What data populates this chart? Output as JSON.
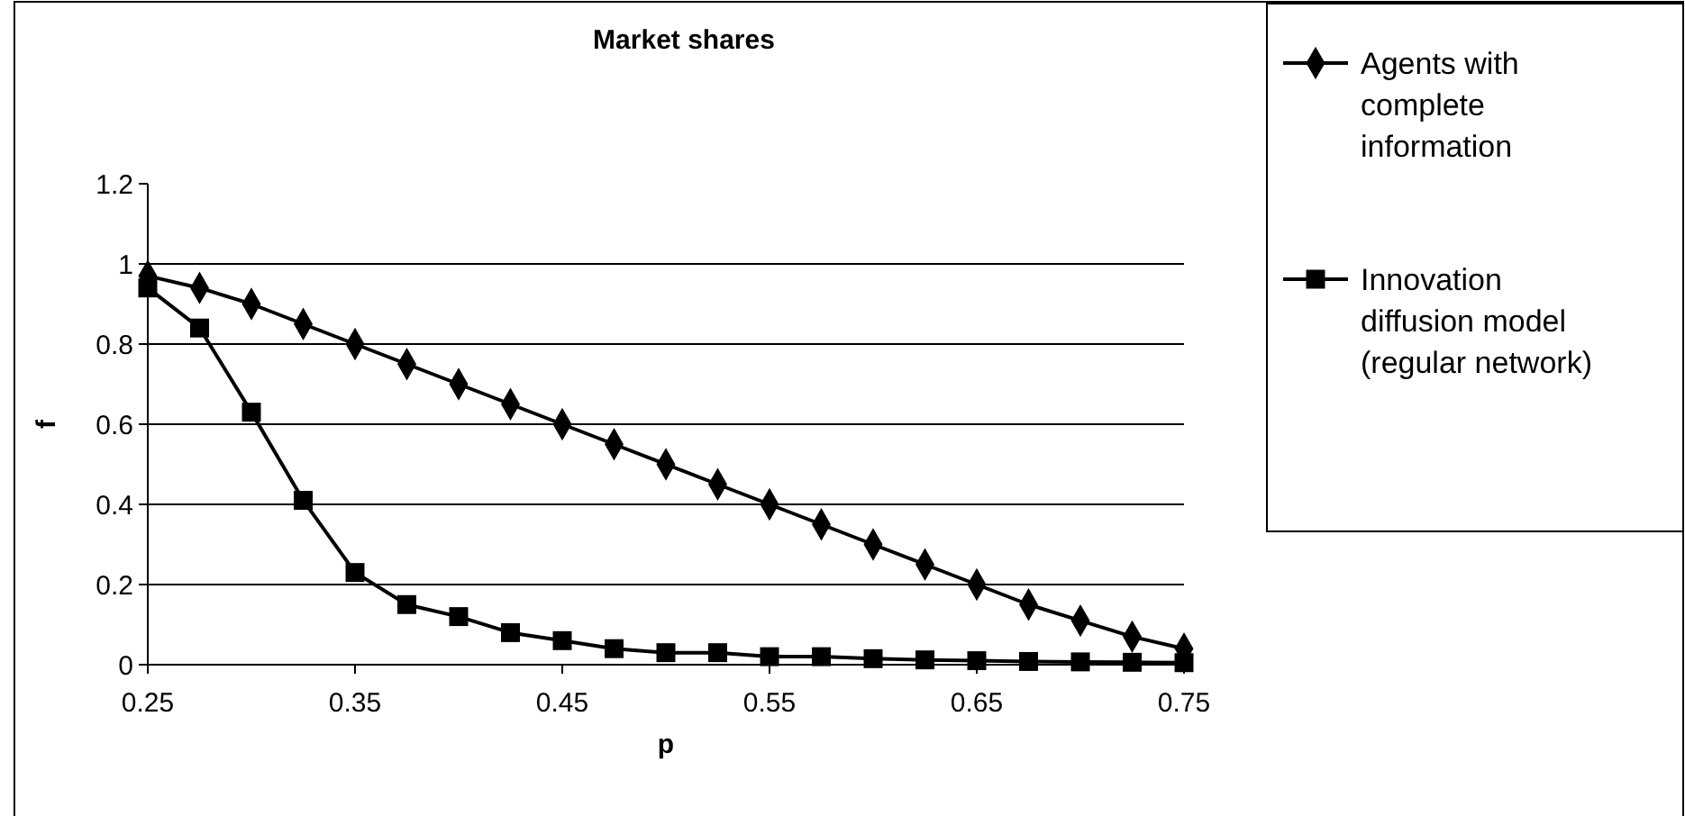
{
  "chart_data": {
    "type": "line",
    "title": "Market shares",
    "xlabel": "p",
    "ylabel": "f",
    "x": [
      0.25,
      0.275,
      0.3,
      0.325,
      0.35,
      0.375,
      0.4,
      0.425,
      0.45,
      0.475,
      0.5,
      0.525,
      0.55,
      0.575,
      0.6,
      0.625,
      0.65,
      0.675,
      0.7,
      0.725,
      0.75
    ],
    "series": [
      {
        "name": "Agents with complete information",
        "color": "#000000",
        "marker": "diamond",
        "values": [
          0.97,
          0.94,
          0.9,
          0.85,
          0.8,
          0.75,
          0.7,
          0.65,
          0.6,
          0.55,
          0.5,
          0.45,
          0.4,
          0.35,
          0.3,
          0.25,
          0.2,
          0.15,
          0.11,
          0.07,
          0.04
        ]
      },
      {
        "name": "Innovation diffusion model (regular network)",
        "color": "#000000",
        "marker": "square",
        "values": [
          0.94,
          0.84,
          0.63,
          0.41,
          0.23,
          0.15,
          0.12,
          0.08,
          0.06,
          0.04,
          0.03,
          0.03,
          0.02,
          0.02,
          0.015,
          0.012,
          0.01,
          0.008,
          0.007,
          0.006,
          0.005
        ]
      }
    ],
    "xlim": [
      0.25,
      0.75
    ],
    "xticks": [
      0.25,
      0.35,
      0.45,
      0.55,
      0.65,
      0.75
    ],
    "ylim": [
      0,
      1.2
    ],
    "yticks": [
      0,
      0.2,
      0.4,
      0.6,
      0.8,
      1,
      1.2
    ],
    "grid": "y",
    "legend": "right",
    "line_style": "solid"
  }
}
